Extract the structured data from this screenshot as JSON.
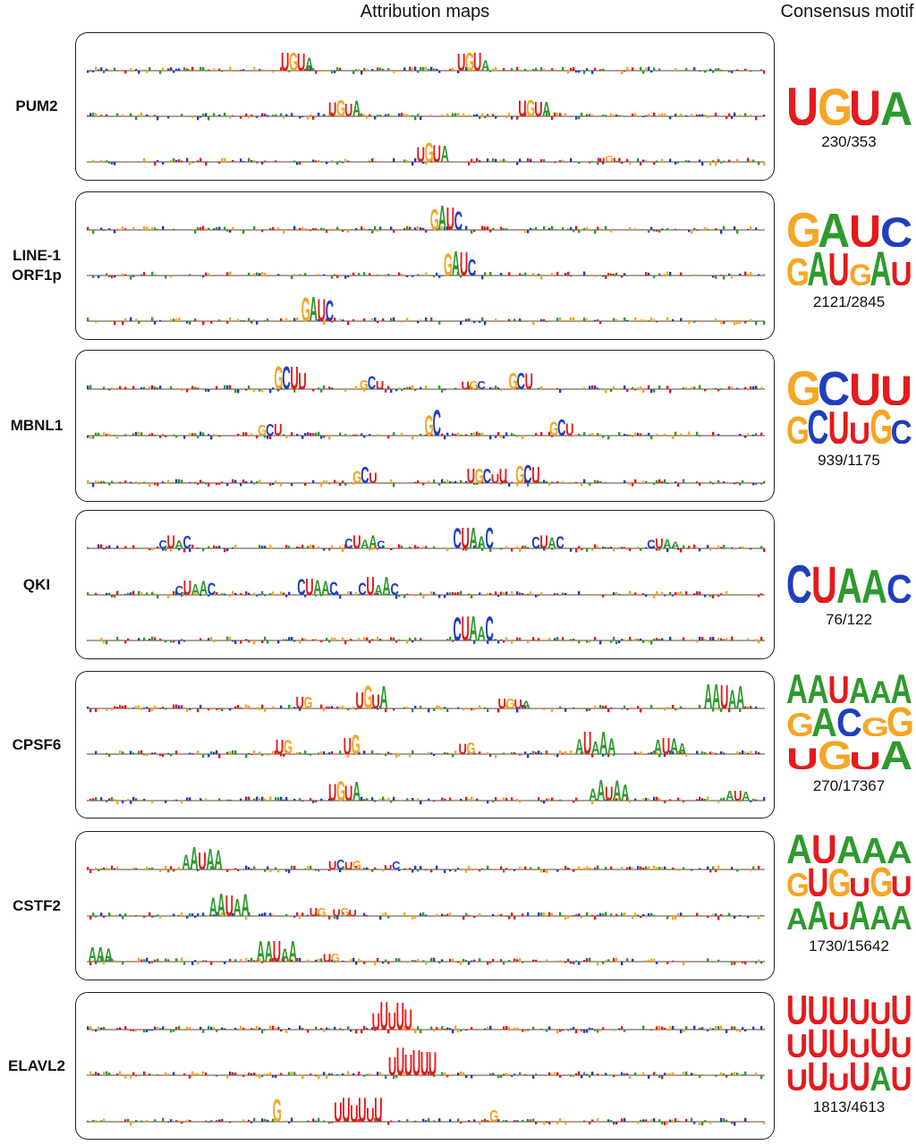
{
  "header": {
    "attribution": "Attribution maps",
    "consensus": "Consensus motif"
  },
  "colors": {
    "A": "#2e9a2e",
    "C": "#1f3fbf",
    "G": "#f5a623",
    "U": "#e41a1c"
  },
  "rows": [
    {
      "name": "PUM2",
      "name_lines": [
        "PUM2"
      ],
      "ratio": "230/353",
      "motifs": [
        "UGUA"
      ],
      "tracks": [
        {
          "peaks": [
            {
              "pos": 0.31,
              "seq": "UGUA",
              "h": 22
            },
            {
              "pos": 0.57,
              "seq": "UGUA",
              "h": 22
            }
          ]
        },
        {
          "peaks": [
            {
              "pos": 0.38,
              "seq": "UGUA",
              "h": 20
            },
            {
              "pos": 0.66,
              "seq": "UGUA",
              "h": 20
            }
          ]
        },
        {
          "peaks": [
            {
              "pos": 0.51,
              "seq": "UGUA",
              "h": 24
            },
            {
              "pos": 0.77,
              "seq": "UGU",
              "h": 8
            }
          ]
        }
      ]
    },
    {
      "name": "LINE-1 ORF1p",
      "name_lines": [
        "LINE-1",
        "ORF1p"
      ],
      "ratio": "2121/2845",
      "motifs": [
        "GAUC",
        "GAUGAU"
      ],
      "tracks": [
        {
          "peaks": [
            {
              "pos": 0.53,
              "seq": "GAUC",
              "h": 30
            }
          ]
        },
        {
          "peaks": [
            {
              "pos": 0.55,
              "seq": "GAUC",
              "h": 30
            }
          ]
        },
        {
          "peaks": [
            {
              "pos": 0.34,
              "seq": "GAUC",
              "h": 30
            }
          ]
        }
      ]
    },
    {
      "name": "MBNL1",
      "name_lines": [
        "MBNL1"
      ],
      "ratio": "939/1175",
      "motifs": [
        "GCUU",
        "GCUUGC"
      ],
      "tracks": [
        {
          "peaks": [
            {
              "pos": 0.3,
              "seq": "GCUU",
              "h": 28
            },
            {
              "pos": 0.42,
              "seq": "GCU",
              "h": 16
            },
            {
              "pos": 0.57,
              "seq": "UGC",
              "h": 10
            },
            {
              "pos": 0.64,
              "seq": "GCU",
              "h": 20
            }
          ]
        },
        {
          "peaks": [
            {
              "pos": 0.27,
              "seq": "GCU",
              "h": 14
            },
            {
              "pos": 0.51,
              "seq": "GC",
              "h": 32
            },
            {
              "pos": 0.7,
              "seq": "GCU",
              "h": 20
            }
          ]
        },
        {
          "peaks": [
            {
              "pos": 0.41,
              "seq": "GCU",
              "h": 20
            },
            {
              "pos": 0.59,
              "seq": "UGCUU",
              "h": 18
            },
            {
              "pos": 0.65,
              "seq": "GCU",
              "h": 22
            }
          ]
        }
      ]
    },
    {
      "name": "QKI",
      "name_lines": [
        "QKI"
      ],
      "ratio": "76/122",
      "motifs": [
        "CUAAC"
      ],
      "tracks": [
        {
          "peaks": [
            {
              "pos": 0.13,
              "seq": "CUAC",
              "h": 16
            },
            {
              "pos": 0.41,
              "seq": "CUAAC",
              "h": 16
            },
            {
              "pos": 0.57,
              "seq": "CUAAC",
              "h": 26
            },
            {
              "pos": 0.68,
              "seq": "CUAC",
              "h": 16
            },
            {
              "pos": 0.85,
              "seq": "CUAA",
              "h": 12
            }
          ]
        },
        {
          "peaks": [
            {
              "pos": 0.16,
              "seq": "CUAAC",
              "h": 18
            },
            {
              "pos": 0.34,
              "seq": "CUAAC",
              "h": 20
            },
            {
              "pos": 0.43,
              "seq": "CUAAC",
              "h": 22
            }
          ]
        },
        {
          "peaks": [
            {
              "pos": 0.57,
              "seq": "CUAAC",
              "h": 30
            }
          ]
        }
      ]
    },
    {
      "name": "CPSF6",
      "name_lines": [
        "CPSF6"
      ],
      "ratio": "270/17367",
      "motifs": [
        "AAUAAA",
        "GACGG",
        "UGUA"
      ],
      "tracks": [
        {
          "peaks": [
            {
              "pos": 0.32,
              "seq": "UG",
              "h": 14
            },
            {
              "pos": 0.42,
              "seq": "UGUA",
              "h": 28
            },
            {
              "pos": 0.63,
              "seq": "UGUA",
              "h": 12
            },
            {
              "pos": 0.94,
              "seq": "AAUAA",
              "h": 30
            }
          ]
        },
        {
          "peaks": [
            {
              "pos": 0.29,
              "seq": "UG",
              "h": 18
            },
            {
              "pos": 0.39,
              "seq": "UG",
              "h": 24
            },
            {
              "pos": 0.56,
              "seq": "UG",
              "h": 14
            },
            {
              "pos": 0.75,
              "seq": "AUAAA",
              "h": 28
            },
            {
              "pos": 0.86,
              "seq": "AUAA",
              "h": 20
            }
          ]
        },
        {
          "peaks": [
            {
              "pos": 0.38,
              "seq": "UGUA",
              "h": 24
            },
            {
              "pos": 0.77,
              "seq": "AAUAA",
              "h": 26
            },
            {
              "pos": 0.96,
              "seq": "AUA",
              "h": 12
            }
          ]
        }
      ]
    },
    {
      "name": "CSTF2",
      "name_lines": [
        "CSTF2"
      ],
      "ratio": "1730/15642",
      "motifs": [
        "AUAAA",
        "GUGUGU",
        "AAUAAA"
      ],
      "tracks": [
        {
          "peaks": [
            {
              "pos": 0.17,
              "seq": "AAUAA",
              "h": 28
            },
            {
              "pos": 0.38,
              "seq": "UCUG",
              "h": 12
            },
            {
              "pos": 0.45,
              "seq": "UC",
              "h": 10
            }
          ]
        },
        {
          "peaks": [
            {
              "pos": 0.21,
              "seq": "AAUAA",
              "h": 28
            },
            {
              "pos": 0.34,
              "seq": "UG",
              "h": 10
            },
            {
              "pos": 0.38,
              "seq": "UGU",
              "h": 10
            }
          ]
        },
        {
          "peaks": [
            {
              "pos": 0.02,
              "seq": "AAA",
              "h": 18
            },
            {
              "pos": 0.28,
              "seq": "AAUAA",
              "h": 26
            },
            {
              "pos": 0.36,
              "seq": "UG",
              "h": 10
            }
          ]
        }
      ]
    },
    {
      "name": "ELAVL2",
      "name_lines": [
        "ELAVL2"
      ],
      "ratio": "1813/4613",
      "motifs": [
        "UUUUUU",
        "UUUUUU",
        "UUUUAU"
      ],
      "tracks": [
        {
          "peaks": [
            {
              "pos": 0.45,
              "seq": "UUUUU",
              "h": 34
            }
          ]
        },
        {
          "peaks": [
            {
              "pos": 0.48,
              "seq": "UUUUUU",
              "h": 34
            }
          ]
        },
        {
          "peaks": [
            {
              "pos": 0.28,
              "seq": "G",
              "h": 28
            },
            {
              "pos": 0.4,
              "seq": "UUUUUU",
              "h": 30
            },
            {
              "pos": 0.6,
              "seq": "G",
              "h": 14
            }
          ]
        }
      ]
    }
  ]
}
